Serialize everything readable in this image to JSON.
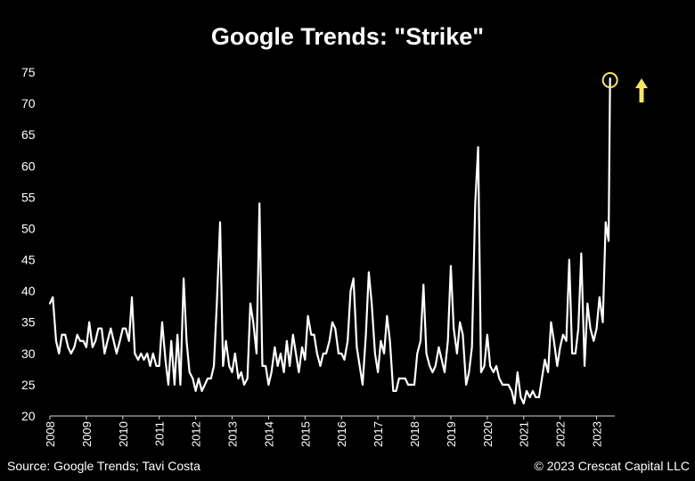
{
  "header": {
    "title": "Google Trends: \"Strike\""
  },
  "footer": {
    "source": "Source: Google Trends; Tavi Costa",
    "copyright": "© 2023 Crescat Capital LLC"
  },
  "colors": {
    "background": "#000000",
    "line": "#ffffff",
    "highlight": "#f5e663"
  },
  "chart_data": {
    "type": "line",
    "title": "Google Trends: \"Strike\"",
    "xlabel": "",
    "ylabel": "",
    "ylim": [
      20,
      75
    ],
    "yticks": [
      20,
      25,
      30,
      35,
      40,
      45,
      50,
      55,
      60,
      65,
      70,
      75
    ],
    "xlim": [
      2008.0,
      2023.5
    ],
    "xticks": [
      "2008",
      "2009",
      "2010",
      "2011",
      "2012",
      "2013",
      "2014",
      "2015",
      "2016",
      "2017",
      "2018",
      "2019",
      "2020",
      "2021",
      "2022",
      "2023"
    ],
    "grid": false,
    "annotations": [
      {
        "type": "circle",
        "at": [
          2023.37,
          74
        ]
      },
      {
        "type": "arrow-up",
        "direction": "up"
      }
    ],
    "series": [
      {
        "x": [
          2008.0,
          2008.08,
          2008.17,
          2008.25,
          2008.33,
          2008.42,
          2008.5,
          2008.58,
          2008.67,
          2008.75,
          2008.83,
          2008.92,
          2009.0,
          2009.08,
          2009.17,
          2009.25,
          2009.33,
          2009.42,
          2009.5,
          2009.58,
          2009.67,
          2009.75,
          2009.83,
          2009.92,
          2010.0,
          2010.08,
          2010.17,
          2010.25,
          2010.33,
          2010.42,
          2010.5,
          2010.58,
          2010.67,
          2010.75,
          2010.83,
          2010.92,
          2011.0,
          2011.08,
          2011.17,
          2011.25,
          2011.33,
          2011.42,
          2011.5,
          2011.58,
          2011.67,
          2011.75,
          2011.83,
          2011.92,
          2012.0,
          2012.08,
          2012.17,
          2012.25,
          2012.33,
          2012.42,
          2012.5,
          2012.58,
          2012.67,
          2012.75,
          2012.83,
          2012.92,
          2013.0,
          2013.08,
          2013.17,
          2013.25,
          2013.33,
          2013.42,
          2013.5,
          2013.58,
          2013.67,
          2013.75,
          2013.83,
          2013.92,
          2014.0,
          2014.08,
          2014.17,
          2014.25,
          2014.33,
          2014.42,
          2014.5,
          2014.58,
          2014.67,
          2014.75,
          2014.83,
          2014.92,
          2015.0,
          2015.08,
          2015.17,
          2015.25,
          2015.33,
          2015.42,
          2015.5,
          2015.58,
          2015.67,
          2015.75,
          2015.83,
          2015.92,
          2016.0,
          2016.08,
          2016.17,
          2016.25,
          2016.33,
          2016.42,
          2016.5,
          2016.58,
          2016.67,
          2016.75,
          2016.83,
          2016.92,
          2017.0,
          2017.08,
          2017.17,
          2017.25,
          2017.33,
          2017.42,
          2017.5,
          2017.58,
          2017.67,
          2017.75,
          2017.83,
          2017.92,
          2018.0,
          2018.08,
          2018.17,
          2018.25,
          2018.33,
          2018.42,
          2018.5,
          2018.58,
          2018.67,
          2018.75,
          2018.83,
          2018.92,
          2019.0,
          2019.08,
          2019.17,
          2019.25,
          2019.33,
          2019.42,
          2019.5,
          2019.58,
          2019.67,
          2019.75,
          2019.83,
          2019.92,
          2020.0,
          2020.08,
          2020.17,
          2020.25,
          2020.33,
          2020.42,
          2020.5,
          2020.58,
          2020.67,
          2020.75,
          2020.83,
          2020.92,
          2021.0,
          2021.08,
          2021.17,
          2021.25,
          2021.33,
          2021.42,
          2021.5,
          2021.58,
          2021.67,
          2021.75,
          2021.83,
          2021.92,
          2022.0,
          2022.08,
          2022.17,
          2022.25,
          2022.33,
          2022.42,
          2022.5,
          2022.58,
          2022.67,
          2022.75,
          2022.83,
          2022.92,
          2023.0,
          2023.08,
          2023.17,
          2023.25,
          2023.33,
          2023.37
        ],
        "values": [
          38,
          39,
          32,
          30,
          33,
          33,
          31,
          30,
          31,
          33,
          32,
          32,
          31,
          35,
          31,
          32,
          34,
          34,
          30,
          32,
          34,
          32,
          30,
          32,
          34,
          34,
          32,
          39,
          30,
          29,
          30,
          29,
          30,
          28,
          30,
          28,
          28,
          35,
          29,
          25,
          32,
          25,
          33,
          25,
          42,
          32,
          27,
          26,
          24,
          26,
          24,
          25,
          26,
          26,
          28,
          38,
          51,
          28,
          32,
          28,
          27,
          30,
          26,
          27,
          25,
          26,
          38,
          35,
          30,
          54,
          28,
          28,
          25,
          27,
          31,
          28,
          30,
          27,
          32,
          28,
          33,
          30,
          27,
          31,
          29,
          36,
          33,
          33,
          30,
          28,
          30,
          30,
          32,
          35,
          34,
          30,
          30,
          29,
          32,
          40,
          42,
          31,
          28,
          25,
          33,
          43,
          38,
          30,
          27,
          32,
          30,
          36,
          32,
          24,
          24,
          26,
          26,
          26,
          25,
          25,
          25,
          30,
          32,
          41,
          30,
          28,
          27,
          28,
          31,
          29,
          27,
          32,
          44,
          34,
          30,
          35,
          33,
          25,
          27,
          31,
          54,
          63,
          27,
          28,
          33,
          28,
          27,
          28,
          26,
          25,
          25,
          25,
          24,
          22,
          27,
          23,
          22,
          24,
          23,
          24,
          23,
          23,
          26,
          29,
          27,
          35,
          32,
          28,
          31,
          33,
          32,
          45,
          30,
          30,
          34,
          46,
          28,
          38,
          34,
          32,
          34,
          39,
          35,
          51,
          48,
          74
        ]
      }
    ]
  }
}
